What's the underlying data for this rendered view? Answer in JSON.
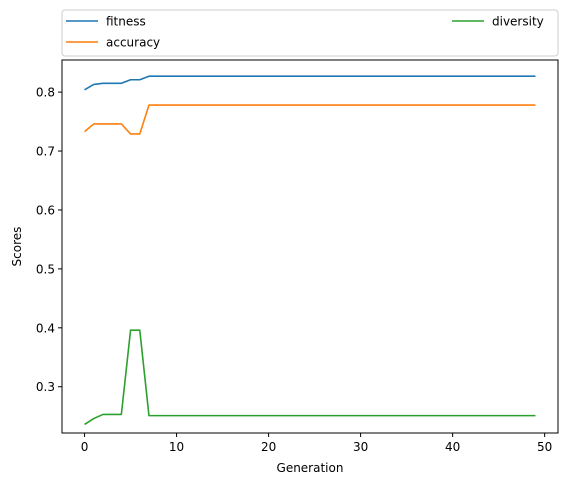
{
  "chart_data": {
    "type": "line",
    "title": "",
    "xlabel": "Generation",
    "ylabel": "Scores",
    "xlim": [
      -2.45,
      51.45
    ],
    "ylim": [
      0.2215,
      0.8545
    ],
    "xticks": [
      0,
      10,
      20,
      30,
      40,
      50
    ],
    "yticks": [
      0.3,
      0.4,
      0.5,
      0.6,
      0.7,
      0.8
    ],
    "ytick_labels": [
      "0.3",
      "0.4",
      "0.5",
      "0.6",
      "0.7",
      "0.8"
    ],
    "grid": false,
    "legend": {
      "placement": "above-plot",
      "columns": 2
    },
    "x": [
      0,
      1,
      2,
      3,
      4,
      5,
      6,
      7,
      8,
      9,
      10,
      11,
      12,
      13,
      14,
      15,
      16,
      17,
      18,
      19,
      20,
      21,
      22,
      23,
      24,
      25,
      26,
      27,
      28,
      29,
      30,
      31,
      32,
      33,
      34,
      35,
      36,
      37,
      38,
      39,
      40,
      41,
      42,
      43,
      44,
      45,
      46,
      47,
      48,
      49
    ],
    "series": [
      {
        "name": "fitness",
        "color": "#1f77b4",
        "values": [
          0.804,
          0.813,
          0.815,
          0.815,
          0.815,
          0.821,
          0.821,
          0.827,
          0.827,
          0.827,
          0.827,
          0.827,
          0.827,
          0.827,
          0.827,
          0.827,
          0.827,
          0.827,
          0.827,
          0.827,
          0.827,
          0.827,
          0.827,
          0.827,
          0.827,
          0.827,
          0.827,
          0.827,
          0.827,
          0.827,
          0.827,
          0.827,
          0.827,
          0.827,
          0.827,
          0.827,
          0.827,
          0.827,
          0.827,
          0.827,
          0.827,
          0.827,
          0.827,
          0.827,
          0.827,
          0.827,
          0.827,
          0.827,
          0.827,
          0.827
        ]
      },
      {
        "name": "accuracy",
        "color": "#ff7f0e",
        "values": [
          0.733,
          0.746,
          0.746,
          0.746,
          0.746,
          0.729,
          0.729,
          0.778,
          0.778,
          0.778,
          0.778,
          0.778,
          0.778,
          0.778,
          0.778,
          0.778,
          0.778,
          0.778,
          0.778,
          0.778,
          0.778,
          0.778,
          0.778,
          0.778,
          0.778,
          0.778,
          0.778,
          0.778,
          0.778,
          0.778,
          0.778,
          0.778,
          0.778,
          0.778,
          0.778,
          0.778,
          0.778,
          0.778,
          0.778,
          0.778,
          0.778,
          0.778,
          0.778,
          0.778,
          0.778,
          0.778,
          0.778,
          0.778,
          0.778,
          0.778
        ]
      },
      {
        "name": "diversity",
        "color": "#2ca02c",
        "values": [
          0.236,
          0.246,
          0.253,
          0.253,
          0.253,
          0.396,
          0.396,
          0.251,
          0.251,
          0.251,
          0.251,
          0.251,
          0.251,
          0.251,
          0.251,
          0.251,
          0.251,
          0.251,
          0.251,
          0.251,
          0.251,
          0.251,
          0.251,
          0.251,
          0.251,
          0.251,
          0.251,
          0.251,
          0.251,
          0.251,
          0.251,
          0.251,
          0.251,
          0.251,
          0.251,
          0.251,
          0.251,
          0.251,
          0.251,
          0.251,
          0.251,
          0.251,
          0.251,
          0.251,
          0.251,
          0.251,
          0.251,
          0.251,
          0.251,
          0.251
        ]
      }
    ]
  }
}
